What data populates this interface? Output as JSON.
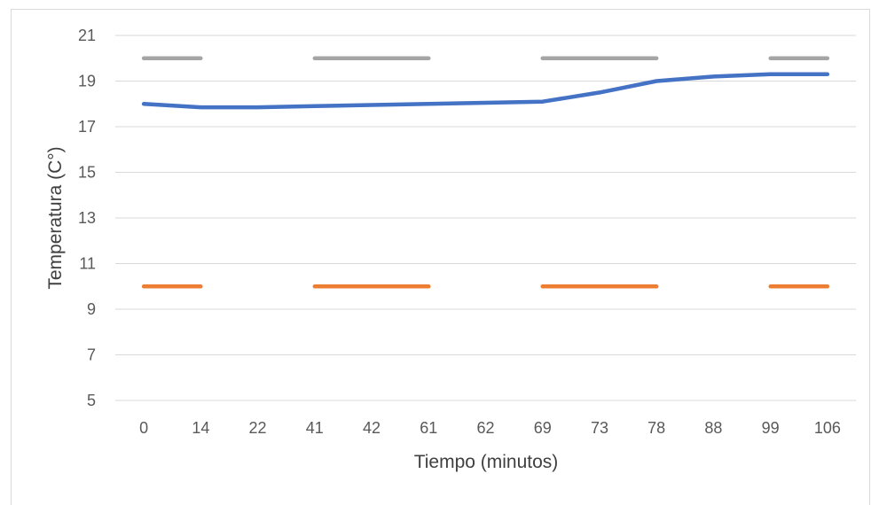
{
  "chart_data": {
    "type": "line",
    "title": "",
    "xlabel": "Tiempo (minutos)",
    "ylabel": "Temperatura (C°)",
    "categories": [
      "0",
      "14",
      "22",
      "41",
      "42",
      "61",
      "62",
      "69",
      "73",
      "78",
      "88",
      "99",
      "106"
    ],
    "yticks": [
      "5",
      "7",
      "9",
      "11",
      "13",
      "15",
      "17",
      "19",
      "21"
    ],
    "ylim": [
      5,
      21
    ],
    "grid": true,
    "legend": "none",
    "series": [
      {
        "color": "#4472c4",
        "style": "solid",
        "values": [
          18.0,
          17.85,
          17.85,
          17.9,
          17.95,
          18.0,
          18.05,
          18.1,
          18.5,
          19.0,
          19.2,
          19.3,
          19.3
        ]
      },
      {
        "color": "#ed7d31",
        "style": "segments",
        "values": [
          10,
          10,
          null,
          10,
          10,
          10,
          null,
          10,
          10,
          10,
          null,
          10,
          10
        ]
      },
      {
        "color": "#a5a5a5",
        "style": "segments",
        "values": [
          20,
          20,
          null,
          20,
          20,
          20,
          null,
          20,
          20,
          20,
          null,
          20,
          20
        ]
      }
    ]
  }
}
